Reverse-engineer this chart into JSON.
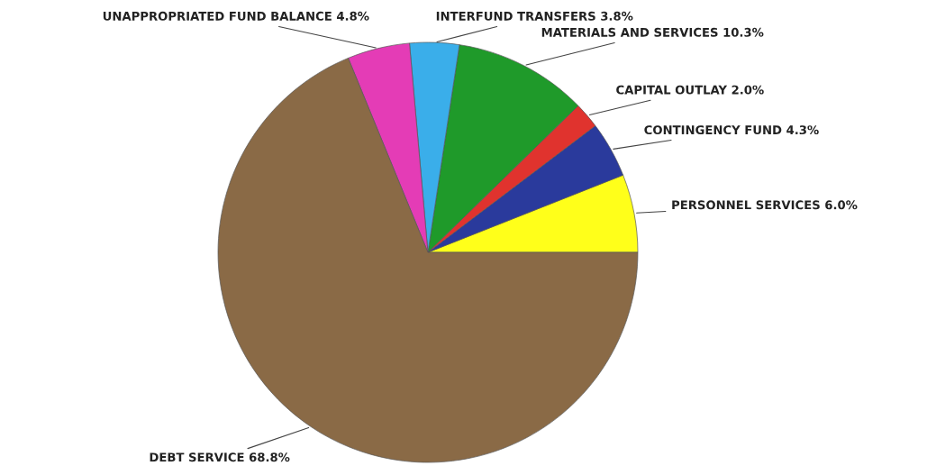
{
  "chart_data": {
    "type": "pie",
    "categories": [
      "PERSONNEL SERVICES",
      "CONTINGENCY FUND",
      "CAPITAL OUTLAY",
      "MATERIALS AND SERVICES",
      "INTERFUND TRANSFERS",
      "UNAPPROPRIATED FUND BALANCE",
      "DEBT SERVICE"
    ],
    "values": [
      6.0,
      4.3,
      2.0,
      10.3,
      3.8,
      4.8,
      68.8
    ],
    "value_labels": [
      "6.0%",
      "4.3%",
      "2.0%",
      "10.3%",
      "3.8%",
      "4.8%",
      "68.8%"
    ],
    "colors": [
      "#ffff1a",
      "#2a3a9c",
      "#e0332e",
      "#1f9a2a",
      "#3aaeea",
      "#e43cb6",
      "#8a6a46"
    ]
  }
}
